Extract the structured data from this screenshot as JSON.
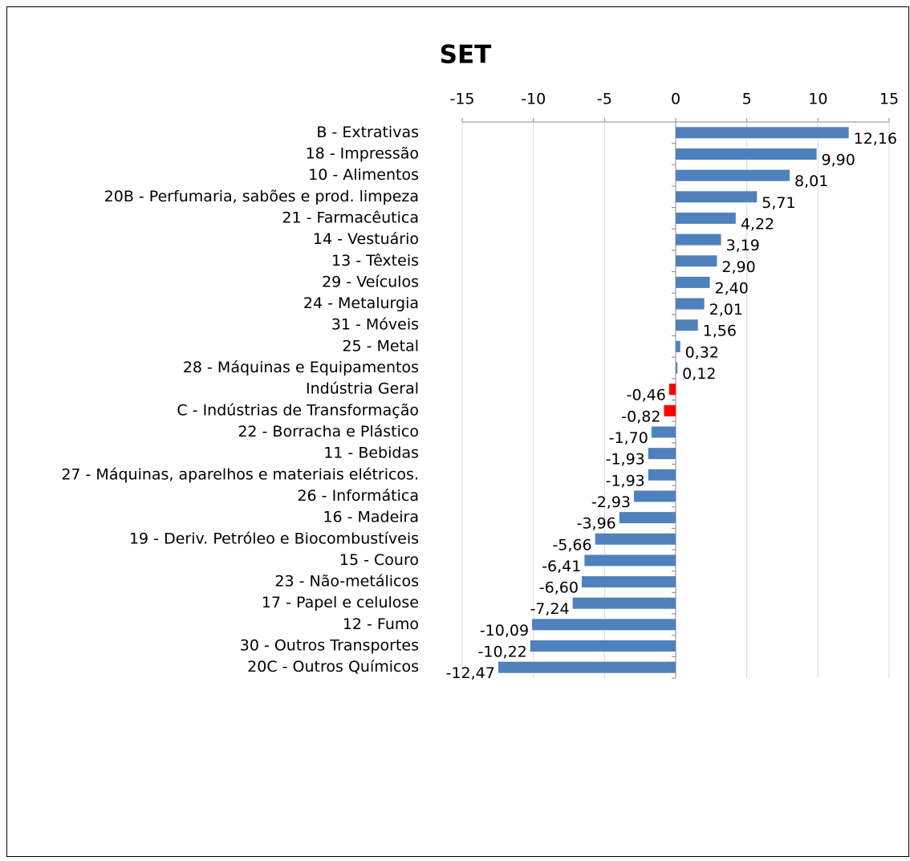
{
  "chart_data": {
    "type": "barh",
    "title": "SET",
    "categories": [
      "B - Extrativas",
      "18 - Impressão",
      "10 - Alimentos",
      "20B - Perfumaria, sabões e prod. limpeza",
      "21 - Farmacêutica",
      "14 - Vestuário",
      "13 - Têxteis",
      "29 - Veículos",
      "24 - Metalurgia",
      "31 - Móveis",
      "25 - Metal",
      "28 - Máquinas e Equipamentos",
      "Indústria Geral",
      "C - Indústrias de Transformação",
      "22 - Borracha e Plástico",
      "11 - Bebidas",
      "27 - Máquinas, aparelhos e materiais elétricos.",
      "26 - Informática",
      "16 - Madeira",
      "19 - Deriv. Petróleo e Biocombustíveis",
      "15 - Couro",
      "23 - Não-metálicos",
      "17 - Papel e celulose",
      "12 - Fumo",
      "30 - Outros Transportes",
      "20C - Outros Químicos"
    ],
    "values": [
      12.16,
      9.9,
      8.01,
      5.71,
      4.22,
      3.19,
      2.9,
      2.4,
      2.01,
      1.56,
      0.32,
      0.12,
      -0.46,
      -0.82,
      -1.7,
      -1.93,
      -1.93,
      -2.93,
      -3.96,
      -5.66,
      -6.41,
      -6.6,
      -7.24,
      -10.09,
      -10.22,
      -12.47
    ],
    "value_labels": [
      "12,16",
      "9,90",
      "8,01",
      "5,71",
      "4,22",
      "3,19",
      "2,90",
      "2,40",
      "2,01",
      "1,56",
      "0,32",
      "0,12",
      "-0,46",
      "-0,82",
      "-1,70",
      "-1,93",
      "-1,93",
      "-2,93",
      "-3,96",
      "-5,66",
      "-6,41",
      "-6,60",
      "-7,24",
      "-10,09",
      "-10,22",
      "-12,47"
    ],
    "colors": [
      "#4f81bd",
      "#4f81bd",
      "#4f81bd",
      "#4f81bd",
      "#4f81bd",
      "#4f81bd",
      "#4f81bd",
      "#4f81bd",
      "#4f81bd",
      "#4f81bd",
      "#4f81bd",
      "#4f81bd",
      "#ff0000",
      "#ff0000",
      "#4f81bd",
      "#4f81bd",
      "#4f81bd",
      "#4f81bd",
      "#4f81bd",
      "#4f81bd",
      "#4f81bd",
      "#4f81bd",
      "#4f81bd",
      "#4f81bd",
      "#4f81bd",
      "#4f81bd"
    ],
    "xlim": [
      -15,
      15
    ],
    "xticks": [
      -15,
      -10,
      -5,
      0,
      5,
      10,
      15
    ],
    "grid": true
  }
}
